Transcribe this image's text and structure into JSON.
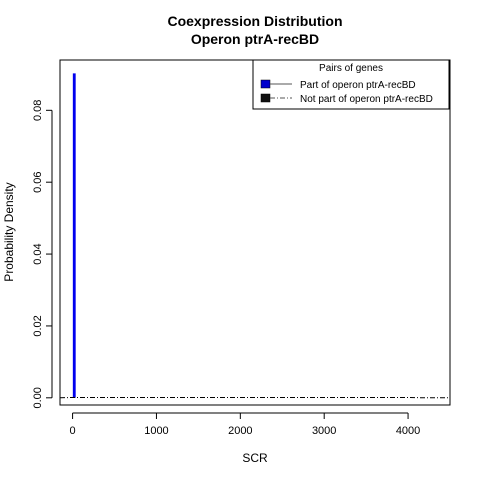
{
  "chart_data": {
    "type": "line",
    "title": "Coexpression Distribution",
    "subtitle": "Operon ptrA-recBD",
    "xlabel": "SCR",
    "ylabel": "Probability Density",
    "xlim": [
      -150,
      4500
    ],
    "ylim": [
      -0.002,
      0.094
    ],
    "xticks": [
      0,
      1000,
      2000,
      3000,
      4000
    ],
    "yticks": [
      0.0,
      0.02,
      0.04,
      0.06,
      0.08
    ],
    "ytick_labels": [
      "0.00",
      "0.02",
      "0.04",
      "0.06",
      "0.08"
    ],
    "grid": false,
    "legend": {
      "title": "Pairs of genes",
      "placement": "top-right",
      "entries": [
        "Part of operon ptrA-recBD",
        "Not part of operon ptrA-recBD"
      ]
    },
    "series": [
      {
        "name": "Part of operon ptrA-recBD",
        "color": "#0000ee",
        "style": "solid",
        "x": [
          15,
          15,
          25,
          25
        ],
        "y": [
          0.0,
          0.09,
          0.09,
          0.0
        ]
      },
      {
        "name": "Not part of operon ptrA-recBD",
        "color": "#000000",
        "style": "dashdot",
        "x": [
          -150,
          0,
          1000,
          2000,
          3000,
          4000,
          4200,
          4500
        ],
        "y": [
          0.0,
          0.0001,
          0.0001,
          0.0001,
          0.0001,
          0.0001,
          0.0,
          0.0
        ]
      }
    ]
  }
}
